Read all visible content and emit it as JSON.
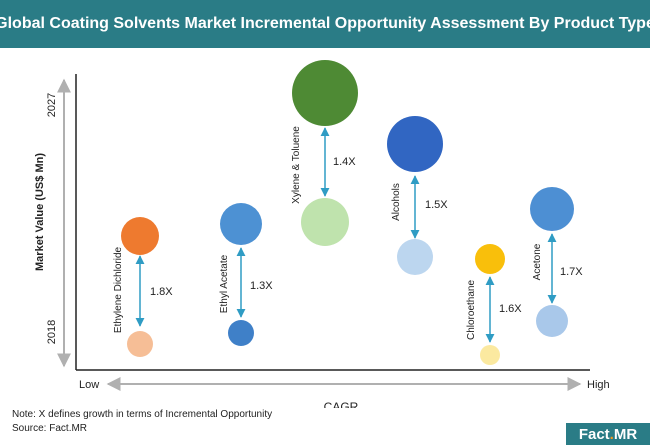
{
  "header": {
    "title": "Global Coating Solvents Market Incremental Opportunity Assessment By Product Type"
  },
  "footer": {
    "note": "Note: X defines growth in terms of Incremental Opportunity",
    "source": "Source: Fact.MR",
    "logo_left": "Fact",
    "logo_dot": ".",
    "logo_right": "MR"
  },
  "chart_data": {
    "type": "bubble",
    "title": "Global Coating Solvents Market Incremental Opportunity Assessment By Product Type",
    "xlabel": "CAGR",
    "ylabel": "Market Value (US$ Mn)",
    "x_ticks": [
      "Low",
      "High"
    ],
    "y_ticks": [
      "2018",
      "2027"
    ],
    "series": [
      {
        "name": "Ethylene Dichloride",
        "growth": "1.8X",
        "color_2027": "#ee7a2f",
        "color_2018": "#f6be96"
      },
      {
        "name": "Ethyl Acetate",
        "growth": "1.3X",
        "color_2027": "#4d91d3",
        "color_2018": "#3f80c8"
      },
      {
        "name": "Xylene & Toluene",
        "growth": "1.4X",
        "color_2027": "#4e8a34",
        "color_2018": "#bfe3ad"
      },
      {
        "name": "Alcohols",
        "growth": "1.5X",
        "color_2027": "#3166c2",
        "color_2018": "#bcd6ef"
      },
      {
        "name": "Chloroethane",
        "growth": "1.6X",
        "color_2027": "#f9bf0b",
        "color_2018": "#fbe9a0"
      },
      {
        "name": "Acetone",
        "growth": "1.7X",
        "color_2027": "#4d8fd3",
        "color_2018": "#a9c8ea"
      }
    ]
  }
}
